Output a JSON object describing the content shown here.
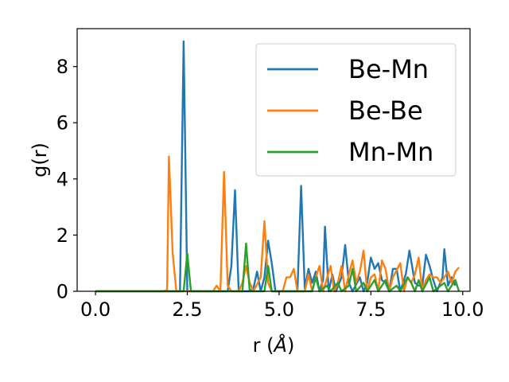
{
  "chart_data": {
    "type": "line",
    "xlabel": "r (",
    "xlabel_unit": "Å",
    "xlabel_close": ")",
    "ylabel": "g(r)",
    "xlim": [
      -0.5,
      10.2
    ],
    "ylim": [
      0,
      9.35
    ],
    "xticks": [
      0.0,
      2.5,
      5.0,
      7.5,
      10.0
    ],
    "xtick_labels": [
      "0.0",
      "2.5",
      "5.0",
      "7.5",
      "10.0"
    ],
    "yticks": [
      0,
      2,
      4,
      6,
      8
    ],
    "ytick_labels": [
      "0",
      "2",
      "4",
      "6",
      "8"
    ],
    "grid": false,
    "legend_position": "top-right",
    "series": [
      {
        "name": "Be-Mn",
        "color": "#1f77b4",
        "points": [
          [
            0,
            0
          ],
          [
            2.3,
            0
          ],
          [
            2.4,
            8.9
          ],
          [
            2.5,
            0
          ],
          [
            3.6,
            0
          ],
          [
            3.7,
            0.9
          ],
          [
            3.8,
            3.6
          ],
          [
            3.9,
            0
          ],
          [
            4.2,
            0
          ],
          [
            4.3,
            0.1
          ],
          [
            4.4,
            0.7
          ],
          [
            4.5,
            0
          ],
          [
            4.6,
            0.5
          ],
          [
            4.7,
            1.8
          ],
          [
            4.8,
            1.0
          ],
          [
            4.9,
            0
          ],
          [
            5.5,
            0
          ],
          [
            5.6,
            3.75
          ],
          [
            5.7,
            0.1
          ],
          [
            5.8,
            0.8
          ],
          [
            5.9,
            0.3
          ],
          [
            6.0,
            0.7
          ],
          [
            6.1,
            0
          ],
          [
            6.2,
            0.4
          ],
          [
            6.25,
            2.3
          ],
          [
            6.35,
            0
          ],
          [
            6.45,
            0.6
          ],
          [
            6.55,
            0
          ],
          [
            6.7,
            0.5
          ],
          [
            6.8,
            1.65
          ],
          [
            6.9,
            0.3
          ],
          [
            7.0,
            0
          ],
          [
            7.2,
            0.5
          ],
          [
            7.3,
            0
          ],
          [
            7.4,
            0.3
          ],
          [
            7.5,
            1.2
          ],
          [
            7.6,
            0.8
          ],
          [
            7.7,
            1.0
          ],
          [
            7.8,
            0.4
          ],
          [
            7.9,
            0.3
          ],
          [
            8.0,
            0
          ],
          [
            8.1,
            0.8
          ],
          [
            8.2,
            0.8
          ],
          [
            8.3,
            0
          ],
          [
            8.45,
            0.6
          ],
          [
            8.55,
            1.45
          ],
          [
            8.7,
            0.3
          ],
          [
            8.8,
            0.2
          ],
          [
            8.9,
            0.2
          ],
          [
            9.0,
            1.3
          ],
          [
            9.1,
            0.9
          ],
          [
            9.2,
            0.4
          ],
          [
            9.3,
            0
          ],
          [
            9.45,
            0.5
          ],
          [
            9.5,
            1.5
          ],
          [
            9.6,
            0.2
          ],
          [
            9.7,
            0.5
          ],
          [
            9.8,
            0.2
          ]
        ]
      },
      {
        "name": "Be-Be",
        "color": "#ff7f0e",
        "points": [
          [
            0,
            0
          ],
          [
            1.85,
            0
          ],
          [
            1.95,
            0.05
          ],
          [
            2.0,
            4.8
          ],
          [
            2.1,
            1.4
          ],
          [
            2.2,
            0
          ],
          [
            3.2,
            0
          ],
          [
            3.3,
            0.2
          ],
          [
            3.4,
            0
          ],
          [
            3.5,
            4.25
          ],
          [
            3.6,
            0.2
          ],
          [
            3.7,
            0
          ],
          [
            3.9,
            0
          ],
          [
            4.0,
            0.3
          ],
          [
            4.1,
            0.9
          ],
          [
            4.2,
            0.3
          ],
          [
            4.3,
            0
          ],
          [
            4.5,
            0.5
          ],
          [
            4.6,
            2.5
          ],
          [
            4.7,
            0.3
          ],
          [
            4.8,
            0
          ],
          [
            5.1,
            0
          ],
          [
            5.2,
            0.5
          ],
          [
            5.3,
            0.5
          ],
          [
            5.4,
            0.8
          ],
          [
            5.5,
            0
          ],
          [
            5.7,
            0
          ],
          [
            5.8,
            0.6
          ],
          [
            5.9,
            0
          ],
          [
            6.0,
            0.5
          ],
          [
            6.1,
            0.9
          ],
          [
            6.2,
            0
          ],
          [
            6.4,
            0.9
          ],
          [
            6.5,
            0
          ],
          [
            6.6,
            0.3
          ],
          [
            6.7,
            0.9
          ],
          [
            6.8,
            0
          ],
          [
            6.9,
            0.6
          ],
          [
            7.0,
            1.1
          ],
          [
            7.1,
            0.3
          ],
          [
            7.2,
            0.7
          ],
          [
            7.3,
            1.45
          ],
          [
            7.4,
            0
          ],
          [
            7.5,
            0.5
          ],
          [
            7.6,
            0.6
          ],
          [
            7.7,
            0
          ],
          [
            7.8,
            1.1
          ],
          [
            7.9,
            0.8
          ],
          [
            8.0,
            0
          ],
          [
            8.1,
            0.5
          ],
          [
            8.3,
            1.0
          ],
          [
            8.4,
            0
          ],
          [
            8.5,
            0.5
          ],
          [
            8.6,
            0.3
          ],
          [
            8.7,
            0.6
          ],
          [
            8.8,
            1.2
          ],
          [
            8.9,
            0
          ],
          [
            9.0,
            0.4
          ],
          [
            9.1,
            0.6
          ],
          [
            9.2,
            0.5
          ],
          [
            9.3,
            0.5
          ],
          [
            9.4,
            0.3
          ],
          [
            9.5,
            0.5
          ],
          [
            9.6,
            0.7
          ],
          [
            9.7,
            0.3
          ],
          [
            9.8,
            0.7
          ],
          [
            9.9,
            0.85
          ]
        ]
      },
      {
        "name": "Mn-Mn",
        "color": "#2ca02c",
        "points": [
          [
            0,
            0
          ],
          [
            2.4,
            0
          ],
          [
            2.5,
            1.35
          ],
          [
            2.6,
            0
          ],
          [
            4.0,
            0
          ],
          [
            4.1,
            1.7
          ],
          [
            4.2,
            0
          ],
          [
            4.6,
            0
          ],
          [
            4.7,
            0.9
          ],
          [
            4.8,
            0
          ],
          [
            5.9,
            0
          ],
          [
            6.0,
            0.5
          ],
          [
            6.1,
            0
          ],
          [
            6.3,
            0.2
          ],
          [
            6.4,
            0
          ],
          [
            6.6,
            0.3
          ],
          [
            6.7,
            0
          ],
          [
            6.9,
            0.2
          ],
          [
            7.0,
            0.8
          ],
          [
            7.1,
            0
          ],
          [
            7.3,
            0.3
          ],
          [
            7.4,
            0
          ],
          [
            7.6,
            0.4
          ],
          [
            7.7,
            0
          ],
          [
            7.9,
            0.4
          ],
          [
            8.0,
            0
          ],
          [
            8.2,
            0.2
          ],
          [
            8.3,
            0
          ],
          [
            8.5,
            0.5
          ],
          [
            8.6,
            0.3
          ],
          [
            8.7,
            0
          ],
          [
            8.8,
            0.4
          ],
          [
            8.9,
            0
          ],
          [
            9.1,
            0.5
          ],
          [
            9.2,
            0
          ],
          [
            9.5,
            0.3
          ],
          [
            9.6,
            0
          ],
          [
            9.8,
            0.4
          ],
          [
            9.9,
            0
          ]
        ]
      }
    ]
  }
}
